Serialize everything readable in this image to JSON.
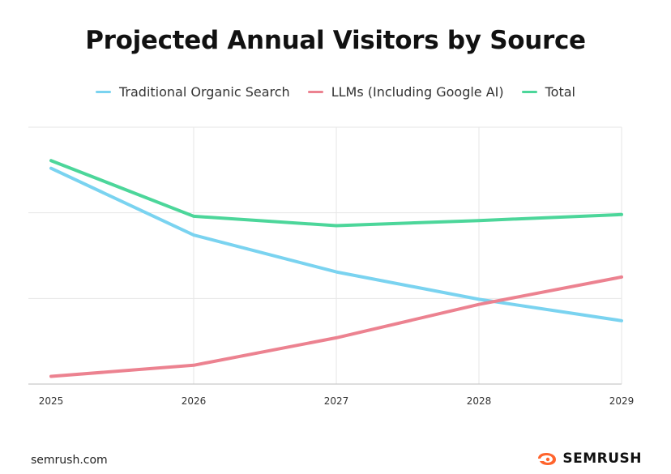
{
  "chart_data": {
    "type": "line",
    "title": "Projected Annual Visitors by Source",
    "xlabel": "",
    "ylabel": "",
    "categories": [
      "2025",
      "2026",
      "2027",
      "2028",
      "2029"
    ],
    "ylim": [
      0,
      3
    ],
    "grid": true,
    "legend_position": "top-center",
    "series": [
      {
        "name": "Traditional Organic Search",
        "color": "#7ad3f0",
        "values": [
          2.52,
          1.74,
          1.31,
          0.99,
          0.74
        ]
      },
      {
        "name": "LLMs (Including Google AI)",
        "color": "#ec8290",
        "values": [
          0.09,
          0.22,
          0.54,
          0.93,
          1.25
        ]
      },
      {
        "name": "Total",
        "color": "#4cd69a",
        "values": [
          2.61,
          1.96,
          1.85,
          1.91,
          1.98
        ]
      }
    ]
  },
  "footer": {
    "site": "semrush.com",
    "brand": "SEMRUSH"
  },
  "colors": {
    "grid": "#e6e6e6",
    "axis": "#bdbdbd",
    "brand_orange": "#ff642d"
  }
}
